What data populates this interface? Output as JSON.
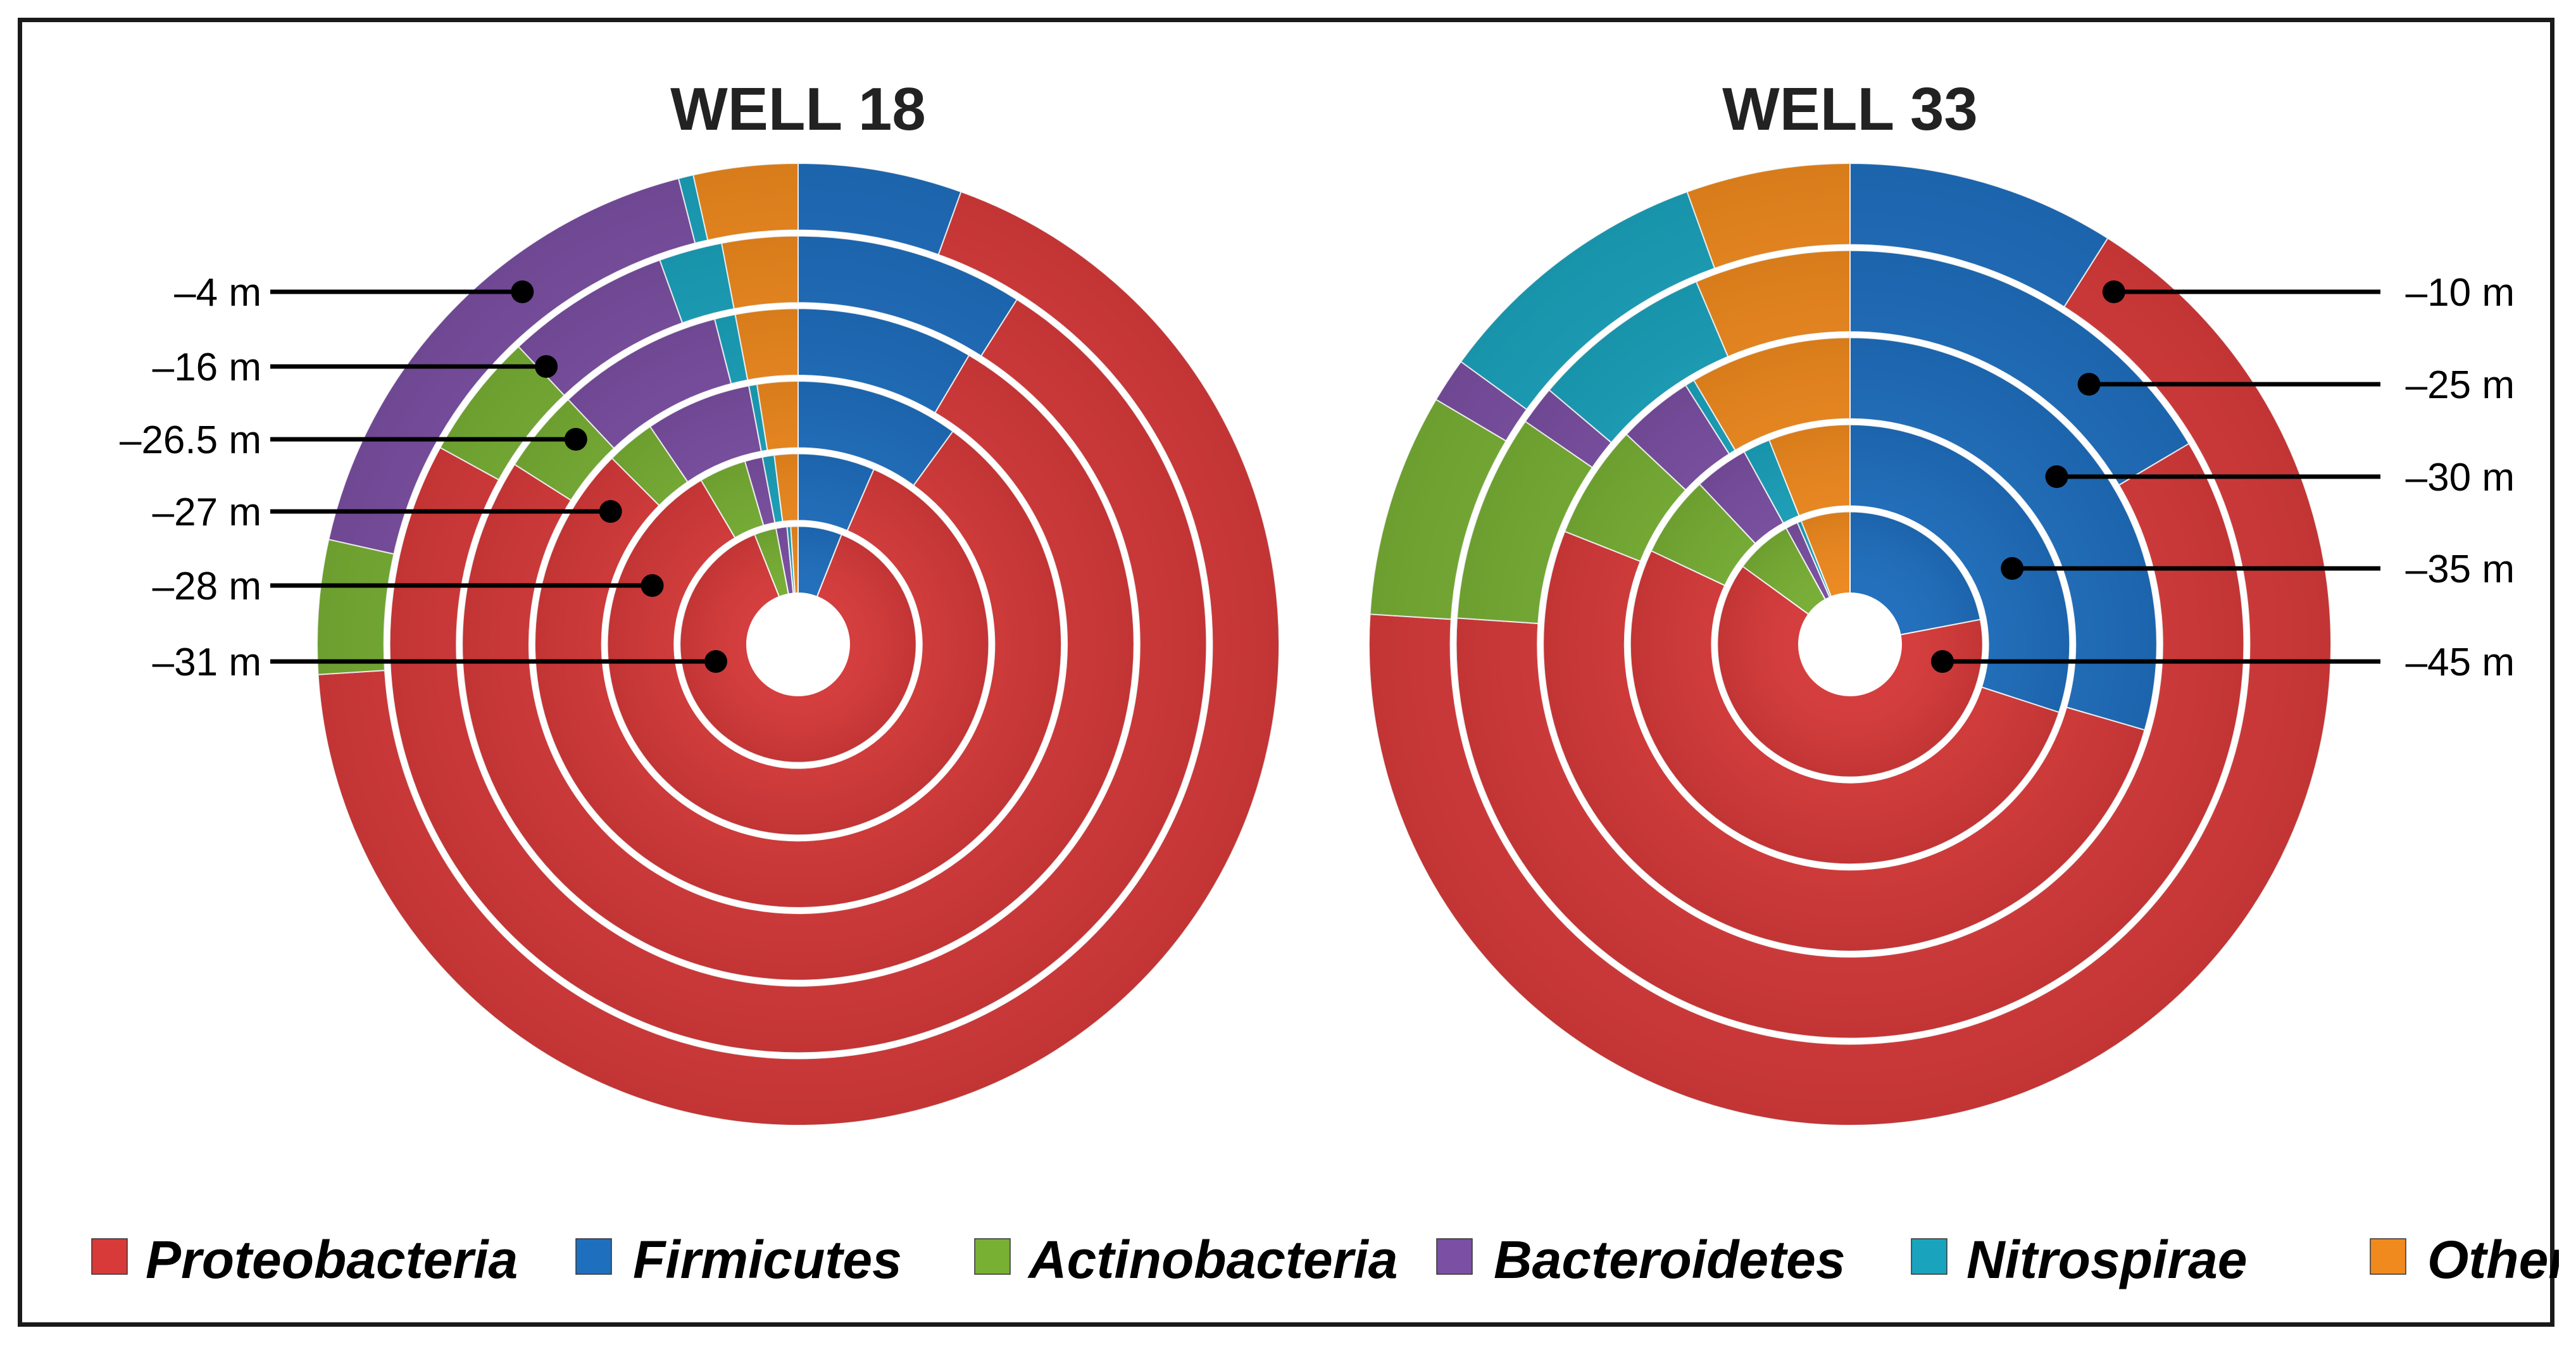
{
  "chart_data": {
    "type": "multi-ring donut",
    "phyla": [
      "Proteobacteria",
      "Firmicutes",
      "Actinobacteria",
      "Bacteroidetes",
      "Nitrospirae",
      "Other"
    ],
    "colors": {
      "Proteobacteria": "#d83a3a",
      "Firmicutes": "#1f6fbf",
      "Actinobacteria": "#78b034",
      "Bacteroidetes": "#7b4fa3",
      "Nitrospirae": "#1aa3bd",
      "Other": "#f08a1e"
    },
    "charts": [
      {
        "title": "WELL 18",
        "depth_labels_side": "left",
        "rings_outer_to_inner": [
          {
            "depth": "–4 m",
            "values": {
              "Proteobacteria": 68.5,
              "Firmicutes": 5.5,
              "Actinobacteria": 4.5,
              "Bacteroidetes": 17.5,
              "Nitrospirae": 0.5,
              "Other": 3.5
            }
          },
          {
            "depth": "–16 m",
            "values": {
              "Proteobacteria": 74,
              "Firmicutes": 9,
              "Actinobacteria": 5,
              "Bacteroidetes": 6.5,
              "Nitrospirae": 2.5,
              "Other": 3
            }
          },
          {
            "depth": "–26.5 m",
            "values": {
              "Proteobacteria": 75.5,
              "Firmicutes": 8.5,
              "Actinobacteria": 4,
              "Bacteroidetes": 8,
              "Nitrospirae": 1,
              "Other": 3
            }
          },
          {
            "depth": "–27 m",
            "values": {
              "Proteobacteria": 77.5,
              "Firmicutes": 10,
              "Actinobacteria": 3,
              "Bacteroidetes": 6.5,
              "Nitrospirae": 0.5,
              "Other": 2.5
            }
          },
          {
            "depth": "–28 m",
            "values": {
              "Proteobacteria": 85,
              "Firmicutes": 6.5,
              "Actinobacteria": 4,
              "Bacteroidetes": 1.5,
              "Nitrospirae": 1,
              "Other": 2
            }
          },
          {
            "depth": "–31 m",
            "values": {
              "Proteobacteria": 88,
              "Firmicutes": 6,
              "Actinobacteria": 3,
              "Bacteroidetes": 1.5,
              "Nitrospirae": 0.5,
              "Other": 1
            }
          }
        ]
      },
      {
        "title": "WELL 33",
        "depth_labels_side": "right",
        "rings_outer_to_inner": [
          {
            "depth": "–10 m",
            "values": {
              "Proteobacteria": 67,
              "Firmicutes": 9,
              "Actinobacteria": 7.5,
              "Bacteroidetes": 1.5,
              "Nitrospirae": 9.5,
              "Other": 5.5
            }
          },
          {
            "depth": "–25 m",
            "values": {
              "Proteobacteria": 56,
              "Firmicutes": 15.5,
              "Actinobacteria": 8,
              "Bacteroidetes": 1.5,
              "Nitrospirae": 7,
              "Other": 6
            }
          },
          {
            "depth": "–30 m",
            "values": {
              "Proteobacteria": 51.5,
              "Firmicutes": 29.5,
              "Actinobacteria": 6,
              "Bacteroidetes": 4,
              "Nitrospirae": 0.5,
              "Other": 8.5
            }
          },
          {
            "depth": "–35 m",
            "values": {
              "Proteobacteria": 52,
              "Firmicutes": 30,
              "Actinobacteria": 6,
              "Bacteroidetes": 4,
              "Nitrospirae": 2,
              "Other": 6
            }
          },
          {
            "depth": "–45 m",
            "values": {
              "Proteobacteria": 63,
              "Firmicutes": 22,
              "Actinobacteria": 7,
              "Bacteroidetes": 1.5,
              "Nitrospirae": 0.5,
              "Other": 6
            }
          }
        ]
      }
    ],
    "legend_position": "bottom"
  }
}
